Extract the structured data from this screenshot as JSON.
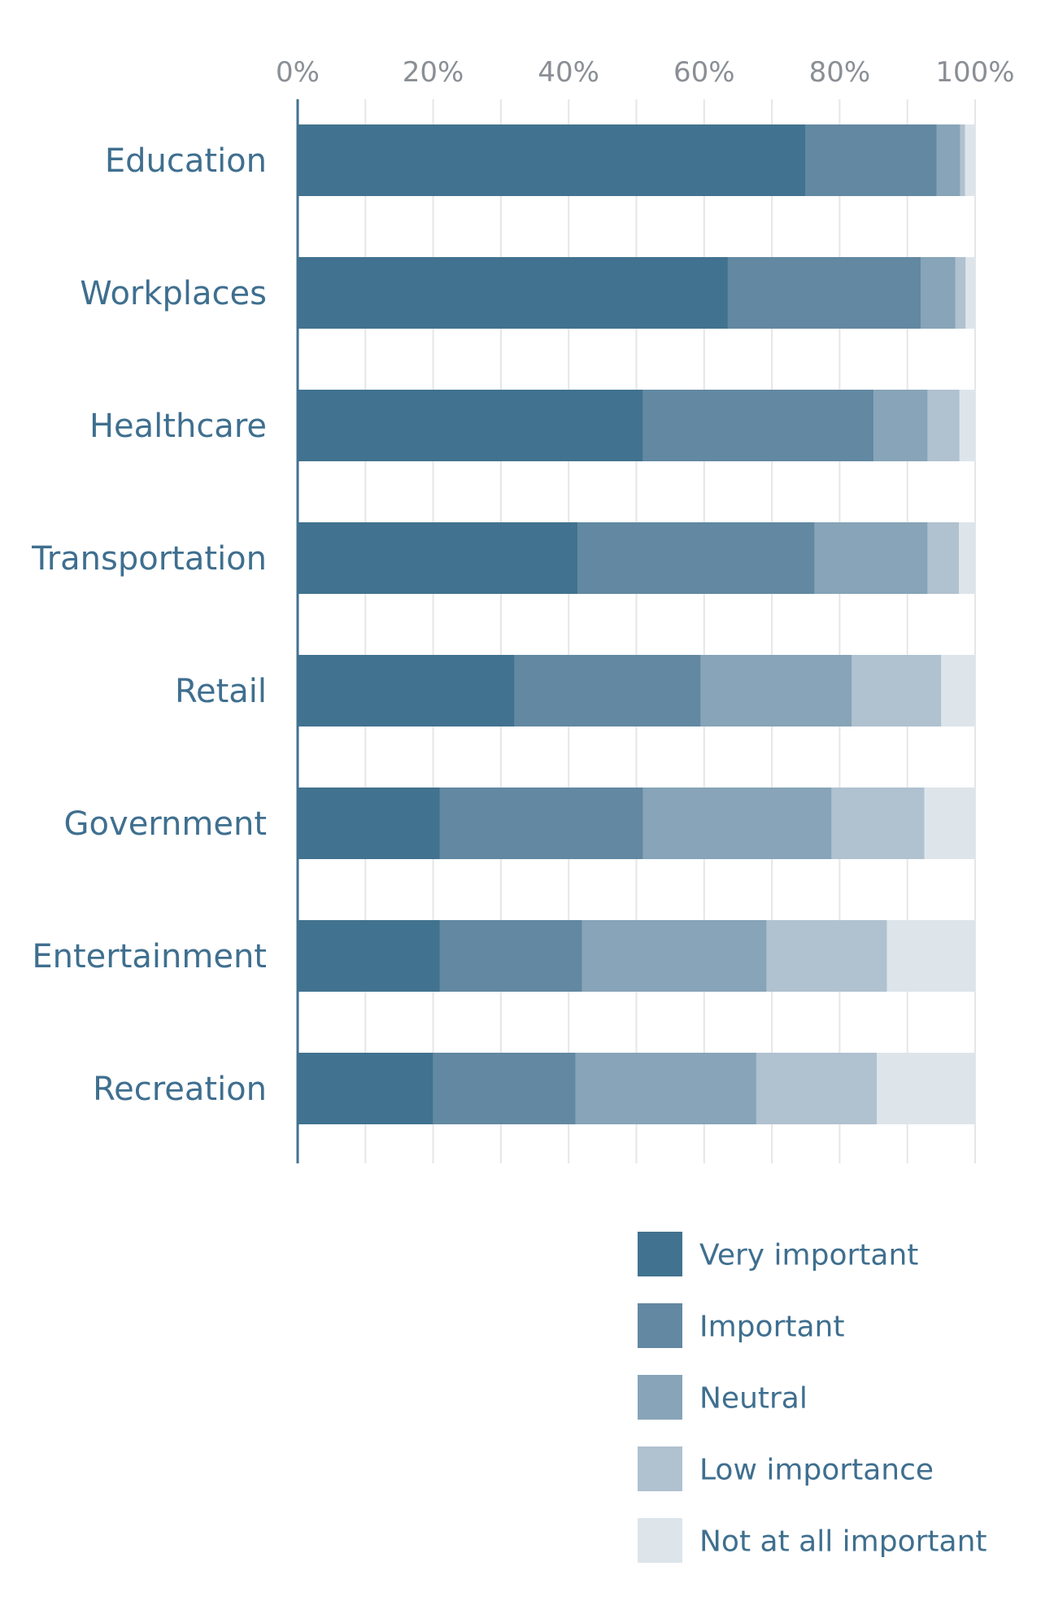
{
  "chart_data": {
    "type": "bar",
    "orientation": "horizontal",
    "stacked": true,
    "title": "",
    "xlabel": "",
    "ylabel": "",
    "xlim": [
      0,
      100
    ],
    "x_ticks": [
      "0%",
      "20%",
      "40%",
      "60%",
      "80%",
      "100%"
    ],
    "x_tick_values": [
      0,
      20,
      40,
      60,
      80,
      100
    ],
    "grid": true,
    "legend_position": "bottom-right",
    "categories": [
      "Education",
      "Workplaces",
      "Healthcare",
      "Transportation",
      "Retail",
      "Government",
      "Entertainment",
      "Recreation"
    ],
    "series": [
      {
        "name": "Very important",
        "color": "#41728f",
        "values": [
          75,
          63.5,
          51,
          41.3,
          32,
          21,
          21,
          20
        ]
      },
      {
        "name": "Important",
        "color": "#6288a2",
        "values": [
          19.3,
          28.5,
          34,
          35,
          27.5,
          30,
          21,
          21
        ]
      },
      {
        "name": "Neutral",
        "color": "#87a4b8",
        "values": [
          3.5,
          5.1,
          8,
          16.7,
          22.3,
          27.8,
          27.2,
          26.7
        ]
      },
      {
        "name": "Low importance",
        "color": "#b0c1cf",
        "values": [
          0.7,
          1.5,
          4.7,
          4.6,
          13.2,
          13.7,
          17.8,
          17.8
        ]
      },
      {
        "name": "Not at all important",
        "color": "#dde5eb",
        "values": [
          1.5,
          1.4,
          2.3,
          2.4,
          5,
          7.5,
          13,
          14.5
        ]
      }
    ]
  }
}
